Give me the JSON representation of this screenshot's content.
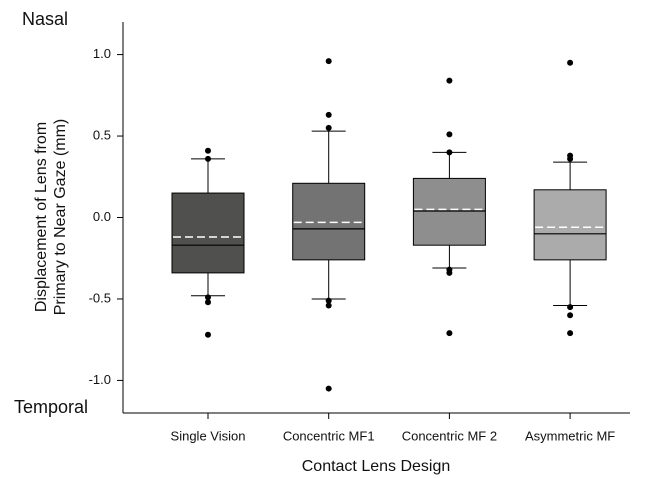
{
  "chart_data": {
    "type": "box",
    "x_label": "Contact Lens Design",
    "y_label": [
      "Displacement of Lens from",
      "Primary to Near Gaze (mm)"
    ],
    "annotations": {
      "top": "Nasal",
      "bottom": "Temporal"
    },
    "categories": [
      "Single Vision",
      "Concentric MF1",
      "Concentric MF 2",
      "Asymmetric MF"
    ],
    "boxes": [
      {
        "color": "#50504e",
        "whisker_low": -0.48,
        "q1": -0.34,
        "median": -0.17,
        "q3": 0.15,
        "whisker_high": 0.36,
        "mean": -0.12,
        "outliers": [
          0.41,
          0.36,
          -0.49,
          -0.52,
          -0.72
        ]
      },
      {
        "color": "#737373",
        "whisker_low": -0.5,
        "q1": -0.26,
        "median": -0.07,
        "q3": 0.21,
        "whisker_high": 0.53,
        "mean": -0.03,
        "outliers": [
          0.96,
          0.63,
          0.55,
          -0.51,
          -0.54,
          -1.05
        ]
      },
      {
        "color": "#8e8e8e",
        "whisker_low": -0.31,
        "q1": -0.17,
        "median": 0.04,
        "q3": 0.24,
        "whisker_high": 0.4,
        "mean": 0.05,
        "outliers": [
          0.84,
          0.51,
          0.4,
          -0.32,
          -0.34,
          -0.71
        ]
      },
      {
        "color": "#ababab",
        "whisker_low": -0.54,
        "q1": -0.26,
        "median": -0.1,
        "q3": 0.17,
        "whisker_high": 0.34,
        "mean": -0.06,
        "outliers": [
          0.95,
          0.38,
          0.36,
          -0.55,
          -0.6,
          -0.71
        ]
      }
    ],
    "ylim": [
      -1.2,
      1.2
    ],
    "yticks": [
      {
        "value": -1.0,
        "label": "-1.0"
      },
      {
        "value": -0.5,
        "label": "-0.5"
      },
      {
        "value": 0,
        "label": "0.0"
      },
      {
        "value": 0.5,
        "label": "0.5"
      },
      {
        "value": 1.0,
        "label": "1.0"
      }
    ]
  }
}
